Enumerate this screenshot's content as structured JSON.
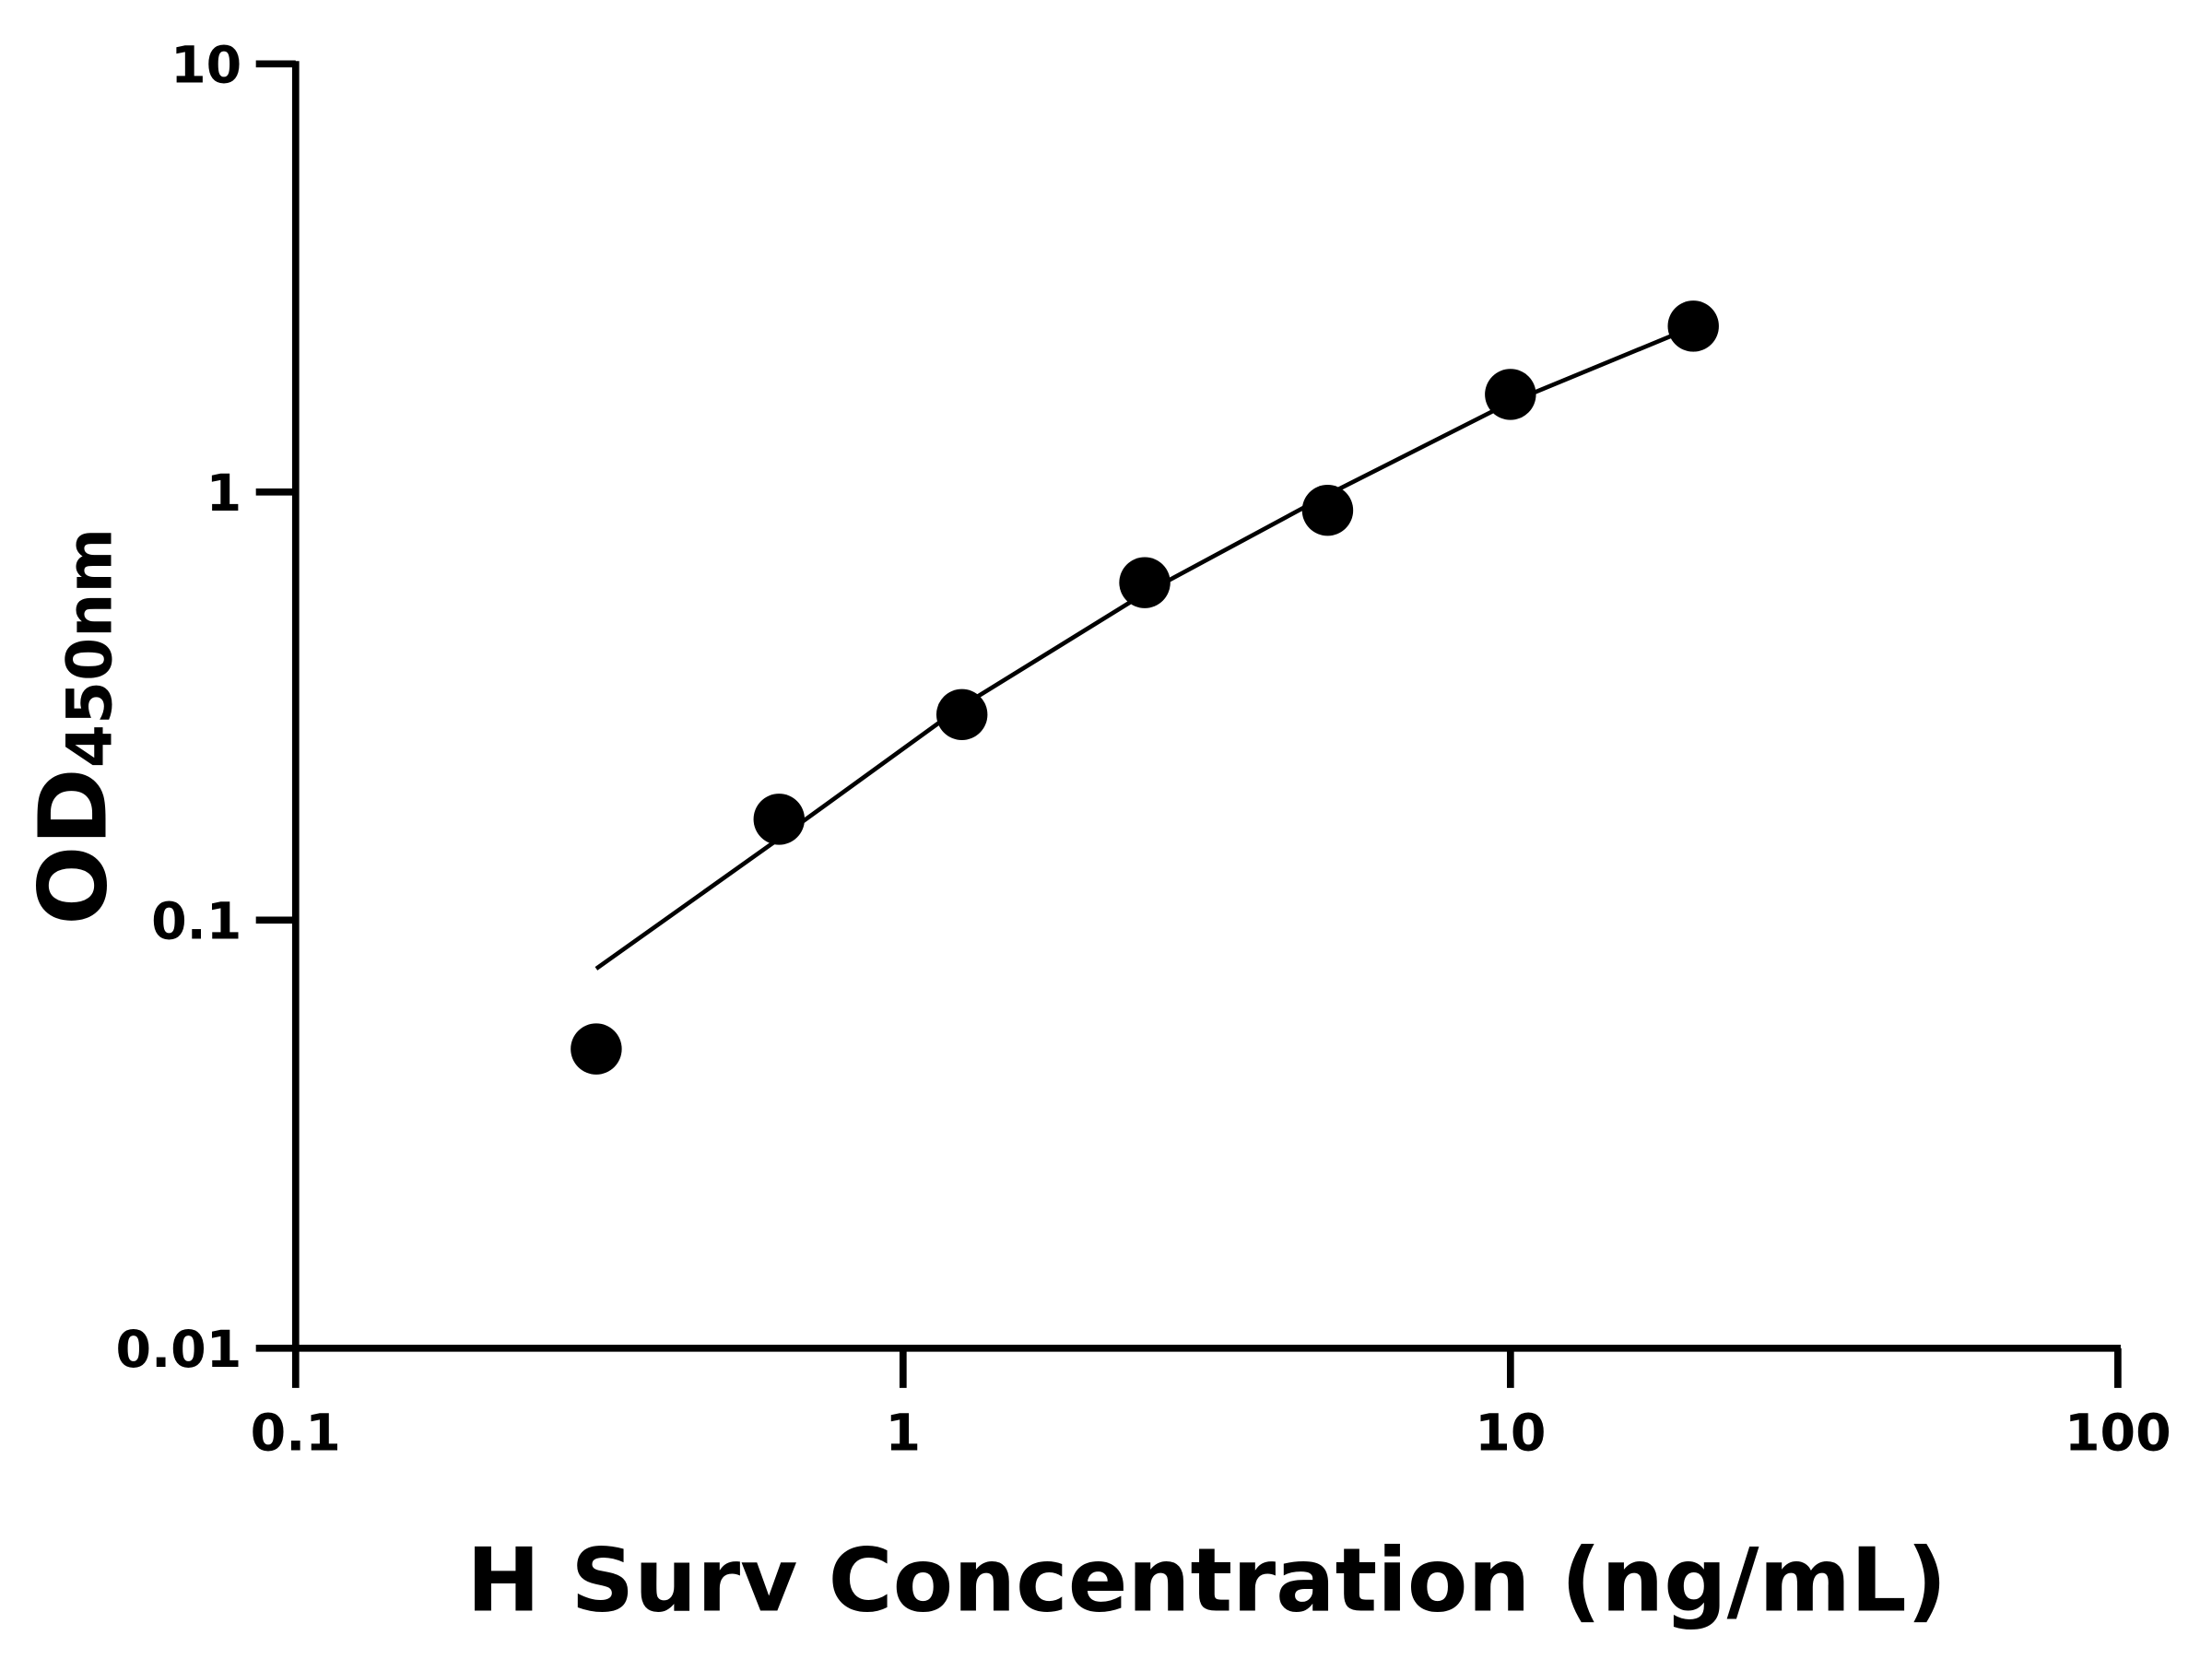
{
  "chart_data": {
    "type": "scatter",
    "x_label": "H Surv Concentration (ng/mL)",
    "y_label": "OD",
    "y_label_sub": "450nm",
    "x_scale": "log",
    "y_scale": "log",
    "xlim": [
      0.1,
      100
    ],
    "ylim": [
      0.01,
      10
    ],
    "xticks": [
      0.1,
      1,
      10,
      100
    ],
    "yticks": [
      0.01,
      0.1,
      1,
      10
    ],
    "grid": false,
    "series": [
      {
        "kind": "points",
        "color": "#000000",
        "x": [
          0.3125,
          0.625,
          1.25,
          2.5,
          5,
          10,
          20
        ],
        "values": [
          0.05,
          0.172,
          0.302,
          0.614,
          0.906,
          1.69,
          2.44
        ]
      },
      {
        "kind": "fit",
        "color": "#000000",
        "x": [
          0.3125,
          0.625,
          1.25,
          2.5,
          5,
          10,
          20
        ],
        "values": [
          0.077,
          0.155,
          0.316,
          0.58,
          0.985,
          1.62,
          2.43
        ]
      }
    ]
  }
}
